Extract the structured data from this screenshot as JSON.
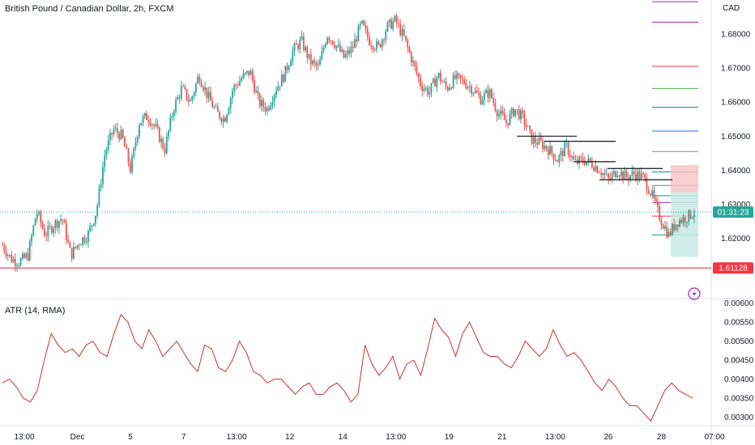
{
  "header": {
    "title": "British Pound / Canadian Dollar, 2h, FXCM",
    "currency": "CAD"
  },
  "atr_header": {
    "title": "ATR (14, RMA)"
  },
  "price_badges": {
    "last_price": "01:31:23",
    "support_price": "1.61128"
  },
  "colors": {
    "up": "#26a69a",
    "down": "#ef5350",
    "atr_line": "#d32f2f",
    "support_line": "#f23645",
    "position_loss": "#f7c6c6",
    "position_profit": "#c8ebe3",
    "current_price_line": "#26a69a"
  },
  "chart_data": [
    {
      "type": "candlestick",
      "pair": "GBP/CAD",
      "interval": "2h",
      "yaxis_ticks": [
        1.62,
        1.63,
        1.64,
        1.65,
        1.66,
        1.67,
        1.68
      ],
      "ylim": [
        1.608,
        1.69
      ],
      "x_ticks": [
        "13:00",
        "Dec",
        "5",
        "7",
        "13:00",
        "12",
        "14",
        "13:00",
        "19",
        "21",
        "13:00",
        "26",
        "28",
        "07:00"
      ],
      "current_price": 1.6277,
      "support_level": 1.61128,
      "close_path": [
        1.618,
        1.614,
        1.613,
        1.615,
        1.628,
        1.621,
        1.624,
        1.626,
        1.615,
        1.619,
        1.621,
        1.628,
        1.645,
        1.652,
        1.65,
        1.64,
        1.654,
        1.656,
        1.652,
        1.646,
        1.658,
        1.664,
        1.66,
        1.668,
        1.662,
        1.657,
        1.655,
        1.664,
        1.667,
        1.669,
        1.66,
        1.658,
        1.664,
        1.668,
        1.675,
        1.678,
        1.672,
        1.67,
        1.68,
        1.677,
        1.673,
        1.676,
        1.683,
        1.678,
        1.676,
        1.682,
        1.684,
        1.679,
        1.672,
        1.665,
        1.663,
        1.668,
        1.664,
        1.667,
        1.666,
        1.664,
        1.661,
        1.663,
        1.657,
        1.654,
        1.658,
        1.655,
        1.649,
        1.648,
        1.646,
        1.643,
        1.647,
        1.642,
        1.643,
        1.642,
        1.64,
        1.637,
        1.64,
        1.638,
        1.639,
        1.638,
        1.633,
        1.626,
        1.621,
        1.625,
        1.626,
        1.6277
      ],
      "horizontal_levels": [
        1.65,
        1.6485,
        1.6425,
        1.6405,
        1.6372
      ],
      "position_tool": {
        "entry": 1.6335,
        "stop": 1.6415,
        "target": 1.6145
      },
      "fib_levels": [
        1.6895,
        1.6835,
        1.6705,
        1.664,
        1.6585,
        1.6515,
        1.6455,
        1.6395,
        1.6355,
        1.6325,
        1.6305,
        1.6265,
        1.621
      ]
    },
    {
      "type": "line",
      "name": "ATR (14, RMA)",
      "yaxis_ticks": [
        0.003,
        0.0035,
        0.004,
        0.0045,
        0.005,
        0.0055,
        0.006
      ],
      "ylim": [
        0.0028,
        0.0061
      ],
      "values": [
        0.0039,
        0.004,
        0.0038,
        0.0035,
        0.0034,
        0.0037,
        0.0045,
        0.0052,
        0.0049,
        0.0047,
        0.0048,
        0.0046,
        0.0049,
        0.005,
        0.0047,
        0.0046,
        0.0052,
        0.0057,
        0.0055,
        0.005,
        0.0048,
        0.0053,
        0.005,
        0.0046,
        0.0048,
        0.005,
        0.0047,
        0.0044,
        0.0042,
        0.0049,
        0.0048,
        0.0043,
        0.0042,
        0.0045,
        0.005,
        0.0047,
        0.0042,
        0.0041,
        0.0039,
        0.004,
        0.004,
        0.0038,
        0.0036,
        0.0038,
        0.0039,
        0.0036,
        0.0036,
        0.0038,
        0.0039,
        0.0037,
        0.0034,
        0.0036,
        0.0049,
        0.0044,
        0.0041,
        0.0043,
        0.0046,
        0.004,
        0.0044,
        0.0045,
        0.0041,
        0.0048,
        0.0056,
        0.0053,
        0.0051,
        0.0046,
        0.0052,
        0.0055,
        0.0051,
        0.0047,
        0.0046,
        0.0046,
        0.0044,
        0.0043,
        0.0046,
        0.005,
        0.0048,
        0.0046,
        0.0048,
        0.0053,
        0.0049,
        0.0046,
        0.0047,
        0.0045,
        0.0042,
        0.0039,
        0.0037,
        0.004,
        0.0038,
        0.0035,
        0.0033,
        0.0033,
        0.0031,
        0.0029,
        0.0033,
        0.0037,
        0.0039,
        0.0037,
        0.0036,
        0.0035
      ]
    }
  ]
}
